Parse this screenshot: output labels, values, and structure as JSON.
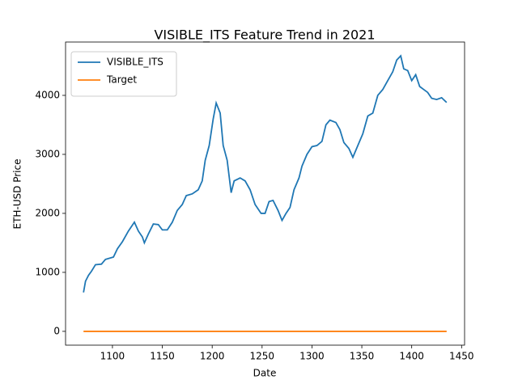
{
  "chart_data": {
    "type": "line",
    "title": "VISIBLE_ITS Feature Trend in 2021",
    "x_label": "Date",
    "y_label": "ETH-USD Price",
    "xlim": [
      1053,
      1453
    ],
    "ylim": [
      -234,
      4904
    ],
    "xticks": [
      1100,
      1150,
      1200,
      1250,
      1300,
      1350,
      1400,
      1450
    ],
    "yticks": [
      0,
      1000,
      2000,
      3000,
      4000
    ],
    "legend": "upper left",
    "series": [
      {
        "name": "VISIBLE_ITS",
        "color": "#1f77b4",
        "x": [
          1071,
          1073,
          1076,
          1079,
          1083,
          1089,
          1093,
          1101,
          1105,
          1110,
          1116,
          1122,
          1126,
          1130,
          1132,
          1136,
          1141,
          1146,
          1150,
          1155,
          1160,
          1165,
          1170,
          1174,
          1180,
          1186,
          1190,
          1193,
          1197,
          1201,
          1204,
          1208,
          1211,
          1215,
          1219,
          1222,
          1228,
          1233,
          1238,
          1243,
          1249,
          1253,
          1257,
          1261,
          1266,
          1270,
          1274,
          1278,
          1282,
          1287,
          1290,
          1295,
          1300,
          1305,
          1310,
          1314,
          1318,
          1324,
          1328,
          1332,
          1337,
          1341,
          1346,
          1351,
          1356,
          1361,
          1366,
          1371,
          1376,
          1381,
          1385,
          1389,
          1392,
          1396,
          1400,
          1404,
          1408,
          1412,
          1416,
          1420,
          1425,
          1430,
          1435
        ],
        "values": [
          660,
          850,
          950,
          1020,
          1130,
          1140,
          1220,
          1260,
          1400,
          1520,
          1700,
          1850,
          1700,
          1600,
          1500,
          1650,
          1820,
          1810,
          1720,
          1720,
          1850,
          2050,
          2150,
          2300,
          2330,
          2400,
          2550,
          2900,
          3150,
          3600,
          3870,
          3700,
          3150,
          2900,
          2350,
          2550,
          2600,
          2550,
          2400,
          2150,
          2000,
          2000,
          2200,
          2220,
          2050,
          1880,
          2000,
          2100,
          2400,
          2600,
          2800,
          3000,
          3130,
          3150,
          3220,
          3500,
          3580,
          3540,
          3420,
          3200,
          3100,
          2950,
          3150,
          3350,
          3650,
          3700,
          4000,
          4100,
          4250,
          4400,
          4600,
          4670,
          4450,
          4420,
          4250,
          4350,
          4150,
          4100,
          4050,
          3950,
          3930,
          3960,
          3880
        ]
      },
      {
        "name": "Target",
        "color": "#ff7f0e",
        "x": [
          1071,
          1435
        ],
        "values": [
          0,
          0
        ]
      }
    ]
  }
}
